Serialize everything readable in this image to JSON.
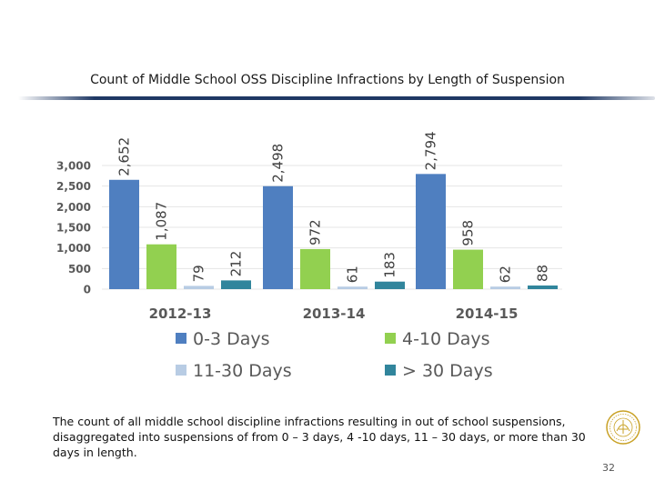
{
  "slide": {
    "title": "Count of Middle School OSS Discipline Infractions by Length of Suspension",
    "caption": "The count of all middle school discipline infractions resulting in out of school suspensions, disaggregated into suspensions of from 0 – 3 days, 4 -10 days, 11 – 30 days, or more than 30 days in length.",
    "page_number": "32",
    "seal_icon": "district-seal-icon"
  },
  "chart_data": {
    "type": "bar",
    "title": "",
    "xlabel": "",
    "ylabel": "",
    "categories": [
      "2012-13",
      "2013-14",
      "2014-15"
    ],
    "ylim": [
      0,
      3000
    ],
    "yticks": [
      0,
      500,
      1000,
      1500,
      2000,
      2500,
      3000
    ],
    "ytick_labels": [
      "0",
      "500",
      "1,000",
      "1,500",
      "2,000",
      "2,500",
      "3,000"
    ],
    "grid": true,
    "legend_position": "bottom",
    "series": [
      {
        "name": "0-3 Days",
        "color": "#4f7fc0",
        "values": [
          2652,
          2498,
          2794
        ],
        "labels": [
          "2,652",
          "2,498",
          "2,794"
        ]
      },
      {
        "name": "4-10 Days",
        "color": "#92d050",
        "values": [
          1087,
          972,
          958
        ],
        "labels": [
          "1,087",
          "972",
          "958"
        ]
      },
      {
        "name": "11-30 Days",
        "color": "#b8cce4",
        "values": [
          79,
          61,
          62
        ],
        "labels": [
          "79",
          "61",
          "62"
        ]
      },
      {
        "name": "> 30 Days",
        "color": "#31859c",
        "values": [
          212,
          183,
          88
        ],
        "labels": [
          "212",
          "183",
          "88"
        ]
      }
    ]
  }
}
